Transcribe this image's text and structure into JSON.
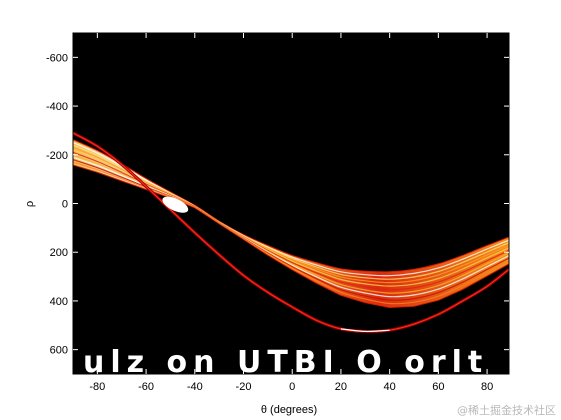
{
  "chart_data": {
    "type": "heatmap",
    "title": "",
    "xlabel": "θ (degrees)",
    "ylabel": "ρ",
    "xlim": [
      -90,
      89
    ],
    "ylim": [
      -700,
      700
    ],
    "y_reversed": true,
    "x_ticks": [
      -80,
      -60,
      -40,
      -20,
      0,
      20,
      40,
      60,
      80
    ],
    "y_ticks": [
      -600,
      -400,
      -200,
      0,
      200,
      400,
      600
    ],
    "x_tick_labels": [
      "-80",
      "-60",
      "-40",
      "-20",
      "0",
      "20",
      "40",
      "60",
      "80"
    ],
    "y_tick_labels": [
      "-600",
      "-400",
      "-200",
      "0",
      "200",
      "400",
      "600"
    ],
    "colormap": "hot",
    "background": "#000000",
    "grid": false,
    "vote_band": {
      "theta": [
        -90,
        -80,
        -70,
        -60,
        -50,
        -40,
        -30,
        -20,
        -10,
        0,
        10,
        20,
        30,
        40,
        50,
        60,
        70,
        80,
        89
      ],
      "rho_upper": [
        -260,
        -215,
        -160,
        -100,
        -45,
        10,
        75,
        130,
        175,
        215,
        245,
        270,
        280,
        282,
        272,
        250,
        215,
        175,
        140
      ],
      "rho_lower": [
        -160,
        -130,
        -95,
        -60,
        -25,
        15,
        80,
        145,
        210,
        270,
        325,
        375,
        405,
        425,
        420,
        395,
        350,
        295,
        245
      ]
    },
    "secondary_curve": {
      "theta": [
        -90,
        -80,
        -70,
        -60,
        -50,
        -40,
        -30,
        -20,
        -10,
        0,
        10,
        20,
        30,
        40,
        50,
        60,
        70,
        80,
        89
      ],
      "rho": [
        -290,
        -235,
        -160,
        -70,
        25,
        120,
        210,
        295,
        365,
        425,
        480,
        515,
        525,
        520,
        495,
        455,
        400,
        340,
        270
      ]
    },
    "overlay_text": "ulz  on  UTBI  O  orlt"
  },
  "watermark": "@稀土掘金技术社区",
  "colors": {
    "plot_background": "#000000",
    "band_outer": "#8b0000",
    "band_mid": "#d41e00",
    "band_inner": "#ff8c1a",
    "band_core": "#ffe680",
    "curve": "#a00000",
    "curve_peak": "#ffffff"
  }
}
